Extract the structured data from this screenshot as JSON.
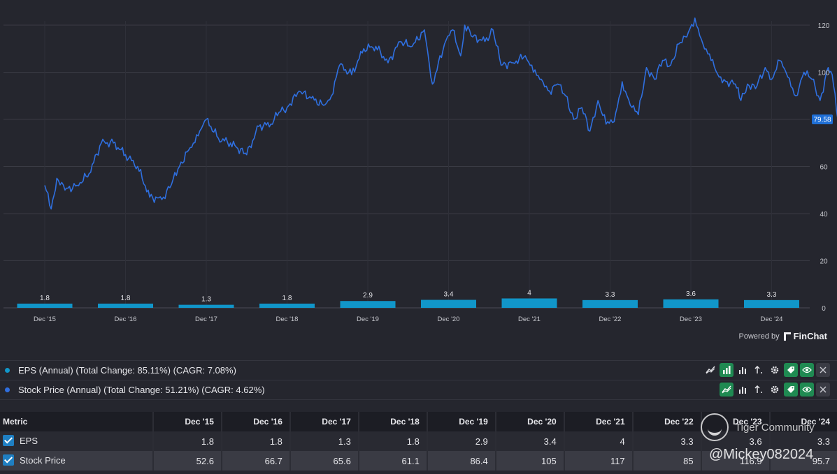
{
  "colors": {
    "background": "#25262e",
    "price_line": "#2f6fdf",
    "eps_bar": "#1196c9",
    "grid": "#3a3b44",
    "badge": "#1f6fd6"
  },
  "chart_data": {
    "type": "line+bar",
    "categories": [
      "Dec '15",
      "Dec '16",
      "Dec '17",
      "Dec '18",
      "Dec '19",
      "Dec '20",
      "Dec '21",
      "Dec '22",
      "Dec '23",
      "Dec '24"
    ],
    "y_ticks": [
      "120",
      "100",
      "80",
      "60",
      "40",
      "20",
      "0"
    ],
    "ylim": [
      0,
      130
    ],
    "y_axis_side": "right",
    "grid": true,
    "last_price_label": "79.58",
    "series": [
      {
        "name": "EPS",
        "type": "bar",
        "color": "#1196c9",
        "values": [
          1.8,
          1.8,
          1.3,
          1.8,
          2.9,
          3.4,
          4,
          3.3,
          3.6,
          3.3
        ],
        "labels": [
          "1.8",
          "1.8",
          "1.3",
          "1.8",
          "2.9",
          "3.4",
          "4",
          "3.3",
          "3.6",
          "3.3"
        ]
      },
      {
        "name": "Stock Price",
        "type": "line",
        "color": "#2f6fdf",
        "x": [
          2015.0,
          2015.08,
          2015.15,
          2015.25,
          2015.4,
          2015.55,
          2015.7,
          2015.85,
          2016.0,
          2016.15,
          2016.3,
          2016.45,
          2016.55,
          2016.65,
          2016.8,
          2016.9,
          2017.0,
          2017.15,
          2017.3,
          2017.5,
          2017.65,
          2017.8,
          2017.9,
          2018.0,
          2018.15,
          2018.3,
          2018.45,
          2018.55,
          2018.65,
          2018.8,
          2018.95,
          2019.1,
          2019.25,
          2019.4,
          2019.55,
          2019.7,
          2019.8,
          2019.95,
          2020.05,
          2020.15,
          2020.2,
          2020.3,
          2020.45,
          2020.55,
          2020.65,
          2020.8,
          2020.95,
          2021.05,
          2021.15,
          2021.25,
          2021.35,
          2021.45,
          2021.55,
          2021.65,
          2021.75,
          2021.85,
          2021.95,
          2022.05,
          2022.15,
          2022.25,
          2022.35,
          2022.45,
          2022.55,
          2022.65,
          2022.75,
          2022.85,
          2022.95,
          2023.05,
          2023.15,
          2023.25,
          2023.35,
          2023.45,
          2023.55,
          2023.62,
          2023.7,
          2023.8,
          2023.92,
          2024.0,
          2024.1,
          2024.2,
          2024.3,
          2024.4,
          2024.5,
          2024.6,
          2024.7,
          2024.75,
          2024.82
        ],
        "values": [
          52,
          42,
          55,
          50,
          52,
          57,
          70,
          70,
          65,
          60,
          47,
          46,
          51,
          59,
          68,
          73,
          80,
          72,
          70,
          65,
          77,
          78,
          83,
          85,
          92,
          89,
          86,
          90,
          103,
          99,
          110,
          111,
          104,
          113,
          111,
          118,
          95,
          112,
          118,
          107,
          120,
          115,
          113,
          118,
          103,
          104,
          107,
          100,
          97,
          92,
          95,
          90,
          80,
          85,
          75,
          88,
          78,
          79,
          96,
          86,
          82,
          102,
          97,
          105,
          103,
          112,
          115,
          123,
          112,
          105,
          98,
          96,
          95,
          88,
          95,
          93,
          102,
          97,
          105,
          98,
          90,
          100,
          97,
          88,
          102,
          99,
          80
        ]
      }
    ]
  },
  "footer": {
    "powered_by": "Powered by",
    "brand": "FinChat"
  },
  "series_panel": [
    {
      "label": "EPS (Annual) (Total Change: 85.11%) (CAGR: 7.08%)",
      "color": "#1196c9"
    },
    {
      "label": "Stock Price (Annual) (Total Change: 51.21%) (CAGR: 4.62%)",
      "color": "#2f6fdf"
    }
  ],
  "table": {
    "header": [
      "Metric",
      "Dec '15",
      "Dec '16",
      "Dec '17",
      "Dec '18",
      "Dec '19",
      "Dec '20",
      "Dec '21",
      "Dec '22",
      "Dec '23",
      "Dec '24"
    ],
    "rows": [
      {
        "name": "EPS",
        "values": [
          "1.8",
          "1.8",
          "1.3",
          "1.8",
          "2.9",
          "3.4",
          "4",
          "3.3",
          "3.6",
          "3.3"
        ]
      },
      {
        "name": "Stock Price",
        "values": [
          "52.6",
          "66.7",
          "65.6",
          "61.1",
          "86.4",
          "105",
          "117",
          "85",
          "116.9",
          "95.7"
        ]
      }
    ]
  },
  "watermark": {
    "community": "Tiger Community",
    "handle": "@Mickey082024"
  }
}
